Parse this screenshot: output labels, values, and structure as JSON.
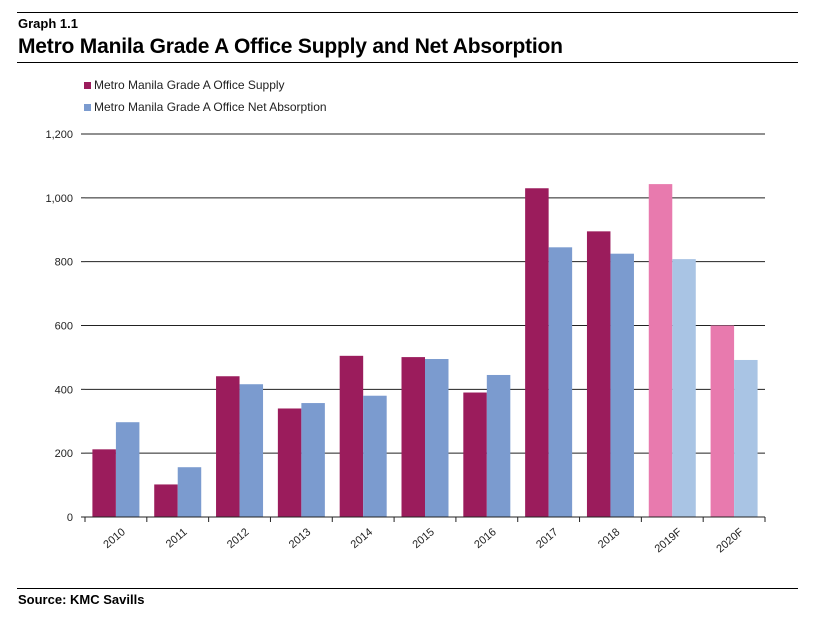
{
  "header": {
    "graph_label": "Graph 1.1",
    "title": "Metro Manila Grade A Office Supply and Net Absorption"
  },
  "footer": {
    "source": "Source: KMC Savills"
  },
  "colors": {
    "supply": "#9b1c5c",
    "absorption": "#7b9bcf",
    "supply_forecast": "#e87aae",
    "absorption_forecast": "#a9c4e4",
    "gridline": "#222222"
  },
  "chart_data": {
    "type": "bar",
    "categories": [
      "2010",
      "2011",
      "2012",
      "2013",
      "2014",
      "2015",
      "2016",
      "2017",
      "2018",
      "2019F",
      "2020F"
    ],
    "forecast_categories": [
      "2019F",
      "2020F"
    ],
    "series": [
      {
        "name": "Metro Manila Grade A Office Supply",
        "values": [
          212,
          102,
          441,
          340,
          505,
          501,
          390,
          1030,
          895,
          1043,
          600
        ]
      },
      {
        "name": "Metro Manila Grade A Office Net Absorption",
        "values": [
          297,
          156,
          416,
          357,
          380,
          495,
          445,
          845,
          825,
          808,
          492
        ]
      }
    ],
    "yticks": [
      "0",
      "200",
      "400",
      "600",
      "800",
      "1,000",
      "1,200"
    ],
    "ylim": [
      0,
      1200
    ],
    "grid": true,
    "legend_position": "top-left",
    "x_tick_rotation": "diagonal"
  }
}
